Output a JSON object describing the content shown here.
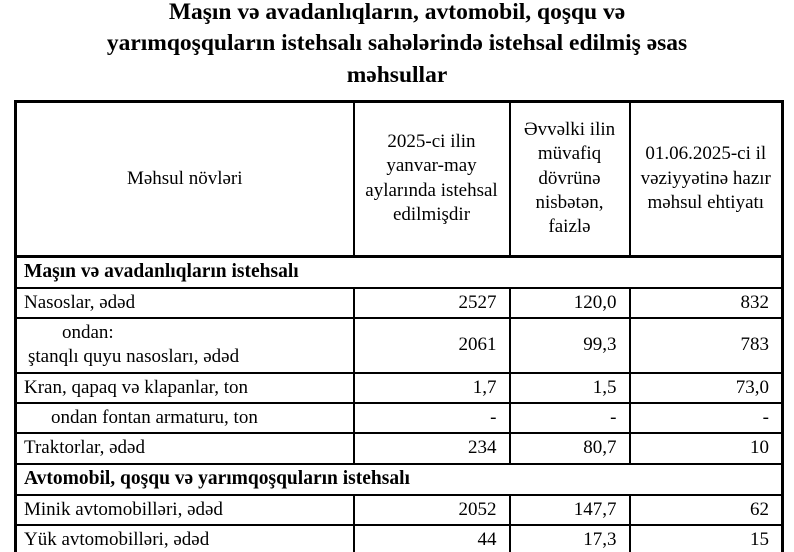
{
  "title": {
    "lines": [
      "Maşın və avadanlıqların, avtomobil, qoşqu və",
      "yarımqoşquların istehsalı sahələrində istehsal edilmiş əsas",
      "məhsullar"
    ]
  },
  "table": {
    "columns": [
      "Məhsul növləri",
      "2025-ci ilin yanvar-may aylarında istehsal edilmişdir",
      "Əvvəlki ilin müvafiq dövrünə nisbətən, faizlə",
      "01.06.2025-ci il vəziyyətinə hazır məhsul ehtiyatı"
    ],
    "sections": [
      {
        "header": "Maşın və avadanlıqların istehsalı",
        "rows": [
          {
            "label": "Nasoslar, ədəd",
            "produced": "2527",
            "percent": "120,0",
            "stock": "832"
          },
          {
            "label_line1": "ondan:",
            "label_line2": "ştanqlı quyu nasosları, ədəd",
            "produced": "2061",
            "percent": "99,3",
            "stock": "783"
          },
          {
            "label": "Kran, qapaq və klapanlar, ton",
            "produced": "1,7",
            "percent": "1,5",
            "stock": "73,0"
          },
          {
            "label": "ondan fontan armaturu, ton",
            "produced": "-",
            "percent": "-",
            "stock": "-"
          },
          {
            "label": "Traktorlar, ədəd",
            "produced": "234",
            "percent": "80,7",
            "stock": "10"
          }
        ]
      },
      {
        "header": "Avtomobil, qoşqu və yarımqoşquların istehsalı",
        "rows": [
          {
            "label": "Minik avtomobilləri, ədəd",
            "produced": "2052",
            "percent": "147,7",
            "stock": "62"
          },
          {
            "label": "Yük avtomobilləri, ədəd",
            "produced": "44",
            "percent": "17,3",
            "stock": "15"
          }
        ]
      }
    ]
  }
}
